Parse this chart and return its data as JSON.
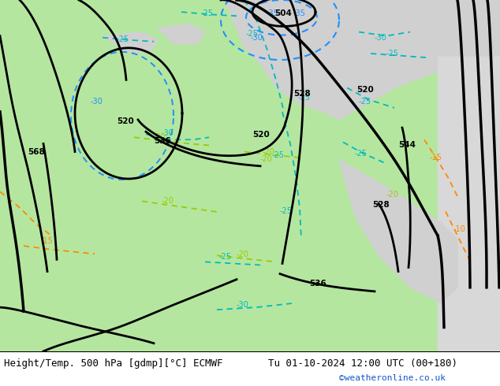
{
  "title_left": "Height/Temp. 500 hPa [gdmp][°C] ECMWF",
  "title_right": "Tu 01-10-2024 12:00 UTC (00+180)",
  "watermark": "©weatheronline.co.uk",
  "land_green_color": "#b5e6a0",
  "land_gray_color": "#c8c8c8",
  "sea_gray_color": "#d0d0d0",
  "right_gray_color": "#d8d8d8",
  "z500_color": "#000000",
  "temp_blue_color": "#1e90ff",
  "temp_cyan_color": "#00bbbb",
  "temp_green_color": "#44cc44",
  "temp_yellow_green_color": "#99cc00",
  "temp_orange_color": "#ff8800",
  "title_fontsize": 9,
  "watermark_color": "#1155cc",
  "figsize": [
    6.34,
    4.9
  ],
  "dpi": 100
}
